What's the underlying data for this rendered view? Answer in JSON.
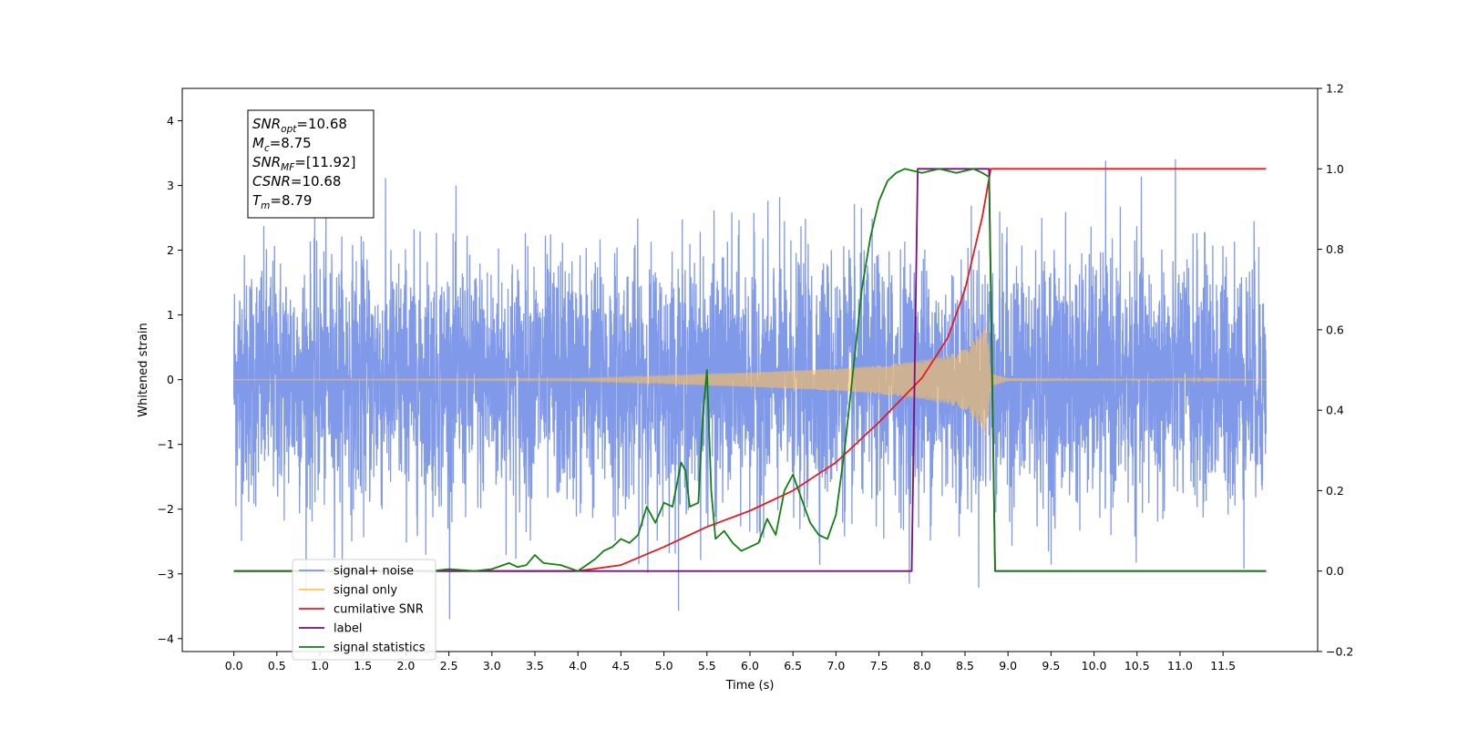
{
  "chart_data": {
    "type": "line",
    "xlabel": "Time (s)",
    "ylabel": "Whitened strain",
    "xlim": [
      -0.6,
      12.6
    ],
    "ylim": [
      -4.2,
      4.5
    ],
    "y2lim": [
      -0.2,
      1.2
    ],
    "x_ticks": [
      "0.0",
      "0.5",
      "1.0",
      "1.5",
      "2.0",
      "2.5",
      "3.0",
      "3.5",
      "4.0",
      "4.5",
      "5.0",
      "5.5",
      "6.0",
      "6.5",
      "7.0",
      "7.5",
      "8.0",
      "8.5",
      "9.0",
      "9.5",
      "10.0",
      "10.5",
      "11.0",
      "11.5"
    ],
    "y_ticks": [
      "−4",
      "−3",
      "−2",
      "−1",
      "0",
      "1",
      "2",
      "3",
      "4"
    ],
    "y2_ticks": [
      "−0.2",
      "0.0",
      "0.2",
      "0.4",
      "0.6",
      "0.8",
      "1.0",
      "1.2"
    ],
    "info_box": {
      "lines": [
        {
          "name": "SNR",
          "sub": "opt",
          "value": "=10.68"
        },
        {
          "name": "M",
          "sub": "c",
          "value": "=8.75"
        },
        {
          "name": "SNR",
          "sub": "MF",
          "value": "=[11.92]"
        },
        {
          "name": "CSNR",
          "sub": "",
          "value": "=10.68"
        },
        {
          "name": "T",
          "sub": "m",
          "value": "=8.79"
        }
      ]
    },
    "legend": {
      "position": "lower-left",
      "entries": [
        {
          "label": "signal+ noise",
          "color": "#7a94e8"
        },
        {
          "label": "signal only",
          "color": "#ffc25a"
        },
        {
          "label": "cumilative SNR",
          "color": "#e8191f"
        },
        {
          "label": "label",
          "color": "#7b0d7e"
        },
        {
          "label": "signal statistics",
          "color": "#118011"
        }
      ]
    },
    "series": [
      {
        "name": "signal+ noise",
        "axis": "left",
        "color": "#7a94e8",
        "description_level": "gaussian noise, std≈1, peaks to ~4.1 at t≈5.8",
        "x_range": [
          0,
          12.0
        ]
      },
      {
        "name": "signal only",
        "axis": "left",
        "color": "#ffc25a",
        "envelope": {
          "x": [
            0,
            4.0,
            5.0,
            5.5,
            6.0,
            6.5,
            7.0,
            7.5,
            8.0,
            8.3,
            8.5,
            8.7,
            8.75,
            8.8,
            9.0,
            12.0
          ],
          "amplitude": [
            0.0,
            0.02,
            0.06,
            0.09,
            0.11,
            0.14,
            0.17,
            0.22,
            0.3,
            0.38,
            0.48,
            0.75,
            0.9,
            0.1,
            0.02,
            0.0
          ]
        }
      },
      {
        "name": "cumilative SNR",
        "axis": "right",
        "color": "#e8191f",
        "x": [
          0,
          4.0,
          4.5,
          5.0,
          5.5,
          6.0,
          6.5,
          7.0,
          7.5,
          8.0,
          8.3,
          8.5,
          8.7,
          8.8,
          12.0
        ],
        "y": [
          0.0,
          0.0,
          0.015,
          0.06,
          0.11,
          0.15,
          0.2,
          0.27,
          0.37,
          0.48,
          0.58,
          0.7,
          0.88,
          1.0,
          1.0
        ]
      },
      {
        "name": "label",
        "axis": "right",
        "color": "#7b0d7e",
        "x": [
          0,
          7.88,
          7.95,
          8.78,
          8.85,
          12.0
        ],
        "y": [
          0.0,
          0.0,
          1.0,
          1.0,
          0.0,
          0.0
        ]
      },
      {
        "name": "signal statistics",
        "axis": "right",
        "color": "#118011",
        "x": [
          0,
          2.3,
          2.5,
          2.8,
          3.0,
          3.2,
          3.3,
          3.4,
          3.5,
          3.6,
          3.8,
          4.0,
          4.2,
          4.3,
          4.4,
          4.5,
          4.6,
          4.7,
          4.8,
          4.9,
          5.0,
          5.1,
          5.2,
          5.25,
          5.3,
          5.4,
          5.45,
          5.5,
          5.55,
          5.6,
          5.7,
          5.8,
          5.9,
          6.0,
          6.1,
          6.2,
          6.3,
          6.4,
          6.5,
          6.6,
          6.7,
          6.8,
          6.9,
          7.0,
          7.1,
          7.2,
          7.3,
          7.4,
          7.5,
          7.6,
          7.7,
          7.8,
          8.0,
          8.2,
          8.4,
          8.6,
          8.7,
          8.78,
          8.85,
          12.0
        ],
        "y": [
          0.0,
          0.0,
          0.005,
          0.0,
          0.005,
          0.02,
          0.01,
          0.015,
          0.04,
          0.02,
          0.015,
          0.0,
          0.03,
          0.05,
          0.06,
          0.08,
          0.07,
          0.09,
          0.16,
          0.12,
          0.17,
          0.16,
          0.27,
          0.25,
          0.16,
          0.17,
          0.38,
          0.5,
          0.2,
          0.08,
          0.1,
          0.07,
          0.05,
          0.06,
          0.07,
          0.13,
          0.09,
          0.2,
          0.24,
          0.18,
          0.12,
          0.09,
          0.08,
          0.14,
          0.3,
          0.5,
          0.7,
          0.83,
          0.92,
          0.97,
          0.99,
          1.0,
          0.99,
          1.0,
          0.99,
          1.0,
          0.99,
          0.98,
          0.0,
          0.0
        ]
      }
    ]
  }
}
